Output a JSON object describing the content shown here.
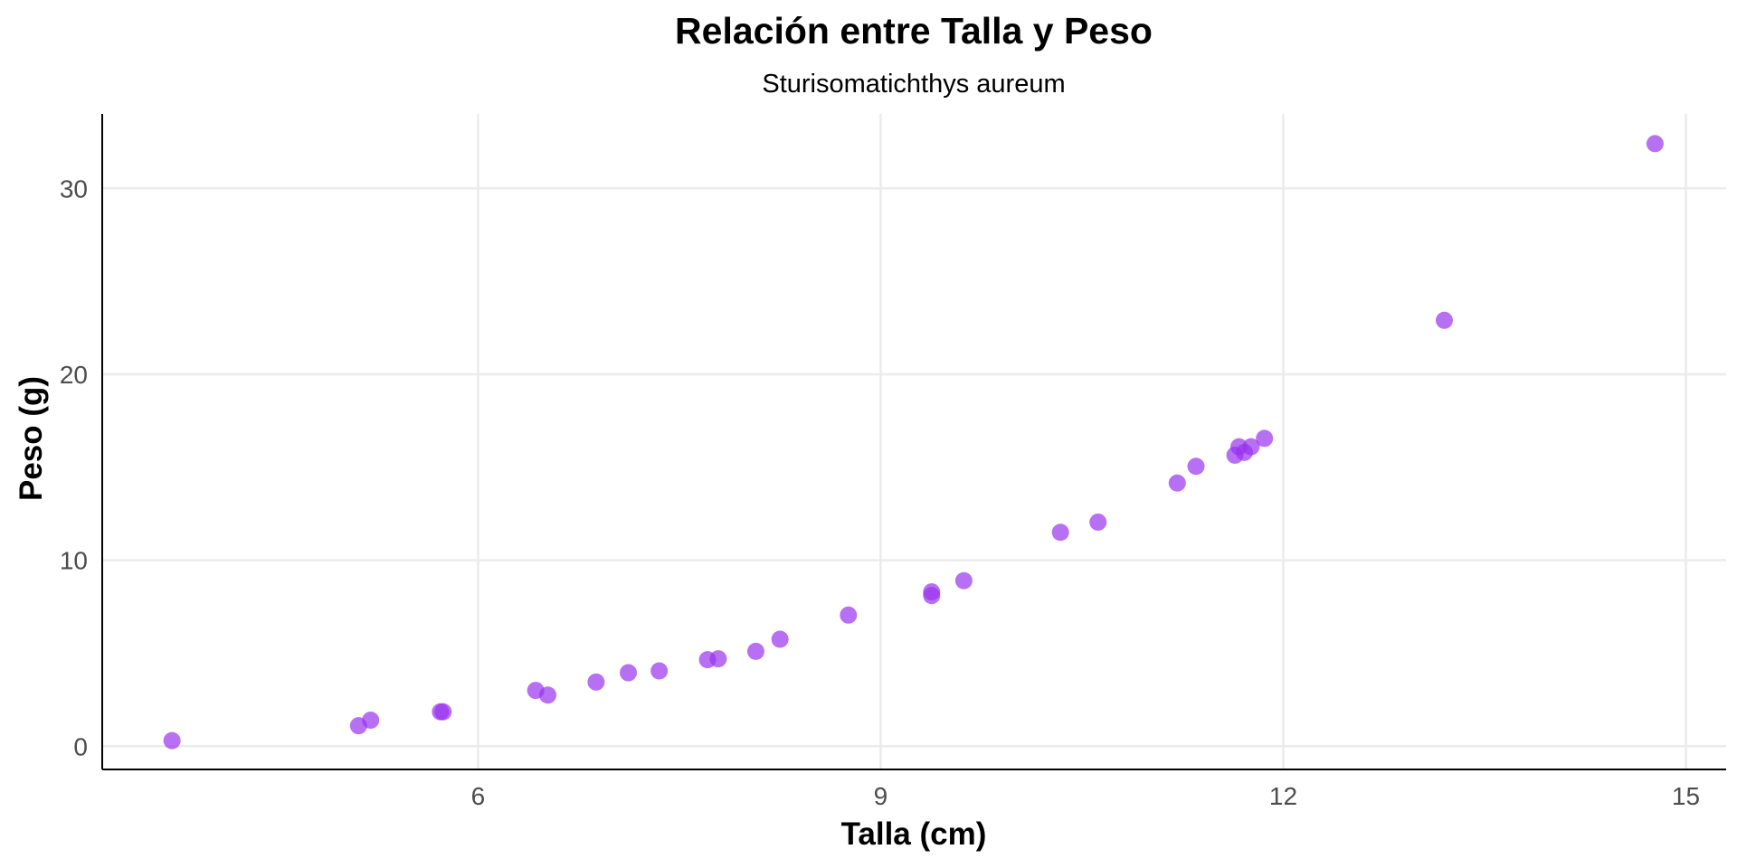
{
  "chart_data": {
    "type": "scatter",
    "title": "Relación entre Talla y Peso",
    "subtitle": "Sturisomatichthys aureum",
    "xlabel": "Talla (cm)",
    "ylabel": "Peso (g)",
    "xlim": [
      3.2,
      15.3
    ],
    "ylim": [
      -1.25,
      34
    ],
    "x_ticks": [
      6,
      9,
      12,
      15
    ],
    "y_ticks": [
      0,
      10,
      20,
      30
    ],
    "x_tick_labels": [
      "6",
      "9",
      "12",
      "15"
    ],
    "y_tick_labels": [
      "0",
      "10",
      "20",
      "30"
    ],
    "grid": true,
    "point_color": "#9933ee",
    "series": [
      {
        "points": [
          {
            "x": 3.72,
            "y": 0.3
          },
          {
            "x": 5.11,
            "y": 1.1
          },
          {
            "x": 5.2,
            "y": 1.4
          },
          {
            "x": 5.72,
            "y": 1.85
          },
          {
            "x": 5.74,
            "y": 1.85
          },
          {
            "x": 6.43,
            "y": 3.0
          },
          {
            "x": 6.52,
            "y": 2.75
          },
          {
            "x": 6.88,
            "y": 3.45
          },
          {
            "x": 7.12,
            "y": 3.95
          },
          {
            "x": 7.35,
            "y": 4.05
          },
          {
            "x": 7.71,
            "y": 4.65
          },
          {
            "x": 7.79,
            "y": 4.7
          },
          {
            "x": 8.07,
            "y": 5.1
          },
          {
            "x": 8.25,
            "y": 5.75
          },
          {
            "x": 8.76,
            "y": 7.05
          },
          {
            "x": 9.38,
            "y": 8.1
          },
          {
            "x": 9.38,
            "y": 8.3
          },
          {
            "x": 9.62,
            "y": 8.9
          },
          {
            "x": 10.34,
            "y": 11.5
          },
          {
            "x": 10.62,
            "y": 12.05
          },
          {
            "x": 11.21,
            "y": 14.15
          },
          {
            "x": 11.35,
            "y": 15.05
          },
          {
            "x": 11.64,
            "y": 15.65
          },
          {
            "x": 11.67,
            "y": 16.1
          },
          {
            "x": 11.71,
            "y": 15.8
          },
          {
            "x": 11.76,
            "y": 16.1
          },
          {
            "x": 11.86,
            "y": 16.55
          },
          {
            "x": 13.2,
            "y": 22.9
          },
          {
            "x": 14.77,
            "y": 32.4
          }
        ]
      }
    ]
  }
}
